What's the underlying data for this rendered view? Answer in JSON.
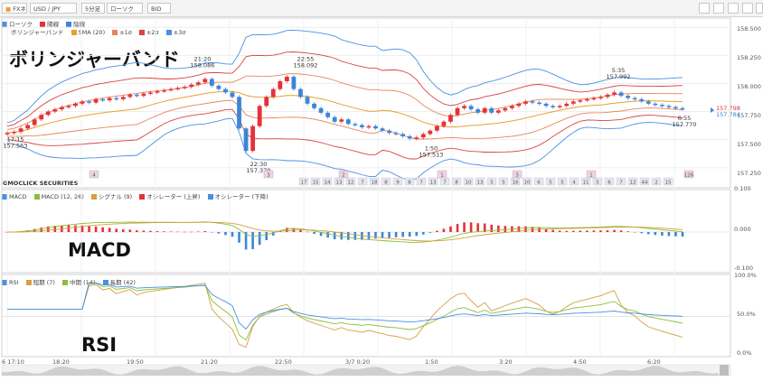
{
  "toolbar": {
    "buttons": [
      "FXネオ",
      "USD / JPY",
      "5分足",
      "ローソク",
      "BID"
    ],
    "icons": [
      "pencil-icon",
      "window-icon",
      "layout-icon",
      "camera-icon",
      "settings-icon",
      "close-icon"
    ]
  },
  "overlays": {
    "main": "ボリンジャーバンド",
    "macd": "MACD",
    "rsi": "RSI"
  },
  "panels": {
    "price": {
      "legend1": [
        "ローソク",
        "陽線",
        "陰線"
      ],
      "legend2": [
        "ボリンジャーバンド",
        "SMA (20)",
        "±1σ",
        "±2σ",
        "±3σ"
      ],
      "yticks": [
        "158.500",
        "158.250",
        "158.000",
        "157.750",
        "157.500",
        "157.250"
      ],
      "current_up": "157.798",
      "current_down": "157.784",
      "annotations": [
        {
          "time": "17:15",
          "price": "157.563"
        },
        {
          "time": "21:20",
          "price": "158.086"
        },
        {
          "time": "22:30",
          "price": "157.379"
        },
        {
          "time": "22:55",
          "price": "158.092"
        },
        {
          "time": "1:50",
          "price": "157.513"
        },
        {
          "time": "5:35",
          "price": "157.992"
        },
        {
          "time": "6:55",
          "price": "157.770"
        }
      ],
      "marker_row_top": [
        "4",
        "3",
        "2",
        "1",
        "3",
        "1",
        "1"
      ],
      "marker_row_bottom": [
        "17",
        "15",
        "14",
        "13",
        "12",
        "7",
        "18",
        "8",
        "9",
        "8",
        "7",
        "13",
        "7",
        "8",
        "10",
        "13",
        "5",
        "5",
        "16",
        "10",
        "6",
        "5",
        "5",
        "4",
        "11",
        "5",
        "6",
        "7",
        "12",
        "44",
        "2",
        "15"
      ],
      "marker_row_top_right": "126"
    },
    "macd": {
      "header": [
        "MACD",
        "MACD (12, 26)",
        "シグナル (9)",
        "オシレーター (上昇)",
        "オシレーター (下降)"
      ],
      "yticks": [
        "0.100",
        "0.000",
        "-0.100"
      ]
    },
    "rsi": {
      "header": [
        "RSI",
        "短期 (7)",
        "中期 (14)",
        "長期 (42)"
      ],
      "yticks": [
        "100.0%",
        "50.0%",
        "0.0%"
      ]
    }
  },
  "xaxis": [
    "6 17:10",
    "18:20",
    "19:50",
    "21:20",
    "22:50",
    "3/7 0:20",
    "1:50",
    "3:20",
    "4:50",
    "6:20"
  ],
  "brand": "GMOCLICK SECURITIES",
  "colors": {
    "up": "#e53238",
    "down": "#3d85d8",
    "sma": "#e8a030",
    "band1": "#e8845a",
    "band2": "#d94444",
    "band3": "#4a90e2",
    "macd": "#8bbf3a",
    "signal": "#d4a043"
  },
  "chart_data": [
    {
      "type": "candlestick",
      "title": "",
      "unit": "USD/JPY 5-minute BID",
      "close": [
        157.56,
        157.57,
        157.6,
        157.63,
        157.68,
        157.72,
        157.75,
        157.77,
        157.79,
        157.8,
        157.82,
        157.84,
        157.83,
        157.86,
        157.85,
        157.87,
        157.86,
        157.88,
        157.9,
        157.89,
        157.91,
        157.92,
        157.93,
        157.94,
        157.95,
        157.96,
        157.97,
        157.99,
        158.01,
        158.04,
        157.98,
        157.95,
        157.92,
        157.88,
        157.6,
        157.4,
        157.62,
        157.8,
        157.88,
        157.95,
        158.02,
        158.06,
        157.95,
        157.88,
        157.82,
        157.78,
        157.74,
        157.7,
        157.66,
        157.68,
        157.64,
        157.63,
        157.61,
        157.62,
        157.6,
        157.58,
        157.56,
        157.55,
        157.53,
        157.51,
        157.52,
        157.55,
        157.58,
        157.62,
        157.66,
        157.72,
        157.78,
        157.8,
        157.77,
        157.74,
        157.78,
        157.74,
        157.76,
        157.78,
        157.8,
        157.82,
        157.84,
        157.83,
        157.82,
        157.8,
        157.79,
        157.8,
        157.82,
        157.84,
        157.85,
        157.86,
        157.87,
        157.88,
        157.9,
        157.92,
        157.89,
        157.87,
        157.86,
        157.84,
        157.82,
        157.81,
        157.8,
        157.79,
        157.78,
        157.77
      ],
      "ylim": [
        157.2,
        158.55
      ],
      "legend": [
        "ローソク",
        "陽線",
        "陰線"
      ]
    },
    {
      "type": "bar",
      "title": "MACD",
      "series": [
        {
          "name": "MACD (12, 26)"
        },
        {
          "name": "シグナル (9)"
        },
        {
          "name": "オシレーター (上昇)"
        },
        {
          "name": "オシレーター (下降)"
        }
      ],
      "ylim": [
        -0.1,
        0.1
      ]
    },
    {
      "type": "line",
      "title": "RSI",
      "series": [
        {
          "name": "短期 (7)"
        },
        {
          "name": "中期 (14)"
        },
        {
          "name": "長期 (42)"
        }
      ],
      "ylim": [
        0,
        100
      ]
    }
  ]
}
